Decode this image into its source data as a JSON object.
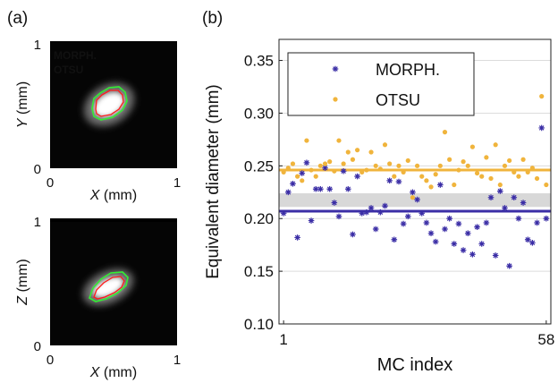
{
  "panel_a": {
    "label": "(a)",
    "top": {
      "xlabel_var": "X",
      "xlabel_unit": " (mm)",
      "ylabel_var": "Y",
      "ylabel_unit": " (mm)",
      "xticks": [
        "0",
        "1"
      ],
      "yticks": [
        "0",
        "1"
      ],
      "legend": [
        {
          "name": "MORPH.",
          "color": "#ff1a1a"
        },
        {
          "name": "OTSU",
          "color": "#33ee33"
        }
      ]
    },
    "bottom": {
      "xlabel_var": "X",
      "xlabel_unit": " (mm)",
      "ylabel_var": "Z",
      "ylabel_unit": " (mm)",
      "xticks": [
        "0",
        "1"
      ],
      "yticks": [
        "0",
        "1"
      ]
    }
  },
  "chart_data": {
    "type": "scatter",
    "panel_label": "(b)",
    "xlabel": "MC index",
    "ylabel": "Equivalent diameter (mm)",
    "xlim": [
      0,
      59
    ],
    "ylim": [
      0.1,
      0.37
    ],
    "xtick_labels": [
      "1",
      "58"
    ],
    "ytick_labels": [
      "0.10",
      "0.15",
      "0.20",
      "0.25",
      "0.30",
      "0.35"
    ],
    "ytick_values": [
      0.1,
      0.15,
      0.2,
      0.25,
      0.3,
      0.35
    ],
    "grid": true,
    "legend_position": "top-left",
    "band": [
      0.211,
      0.224
    ],
    "series": [
      {
        "name": "MORPH.",
        "marker": "asterisk",
        "color": "#3b2ea6",
        "mean": 0.207,
        "x": [
          1,
          2,
          3,
          4,
          5,
          6,
          7,
          8,
          9,
          10,
          11,
          12,
          13,
          14,
          15,
          16,
          17,
          18,
          19,
          20,
          21,
          22,
          23,
          24,
          25,
          26,
          27,
          28,
          29,
          30,
          31,
          32,
          33,
          34,
          35,
          36,
          37,
          38,
          39,
          40,
          41,
          42,
          43,
          44,
          45,
          46,
          47,
          48,
          49,
          50,
          51,
          52,
          53,
          54,
          55,
          56,
          57,
          58
        ],
        "y": [
          0.205,
          0.225,
          0.233,
          0.182,
          0.243,
          0.253,
          0.198,
          0.228,
          0.228,
          0.248,
          0.228,
          0.215,
          0.202,
          0.245,
          0.228,
          0.185,
          0.24,
          0.205,
          0.206,
          0.21,
          0.19,
          0.206,
          0.212,
          0.236,
          0.18,
          0.235,
          0.195,
          0.202,
          0.225,
          0.218,
          0.205,
          0.196,
          0.186,
          0.178,
          0.232,
          0.19,
          0.2,
          0.176,
          0.195,
          0.17,
          0.186,
          0.166,
          0.192,
          0.176,
          0.196,
          0.22,
          0.165,
          0.226,
          0.21,
          0.155,
          0.22,
          0.2,
          0.215,
          0.18,
          0.177,
          0.196,
          0.286,
          0.2
        ]
      },
      {
        "name": "OTSU",
        "marker": "dot",
        "color": "#f0b43c",
        "mean": 0.246,
        "x": [
          1,
          2,
          3,
          4,
          5,
          6,
          7,
          8,
          9,
          10,
          11,
          12,
          13,
          14,
          15,
          16,
          17,
          18,
          19,
          20,
          21,
          22,
          23,
          24,
          25,
          26,
          27,
          28,
          29,
          30,
          31,
          32,
          33,
          34,
          35,
          36,
          37,
          38,
          39,
          40,
          41,
          42,
          43,
          44,
          45,
          46,
          47,
          48,
          49,
          50,
          51,
          52,
          53,
          54,
          55,
          56,
          57,
          58
        ],
        "y": [
          0.244,
          0.248,
          0.252,
          0.24,
          0.236,
          0.274,
          0.246,
          0.24,
          0.25,
          0.252,
          0.254,
          0.245,
          0.274,
          0.252,
          0.263,
          0.256,
          0.265,
          0.244,
          0.246,
          0.263,
          0.25,
          0.247,
          0.27,
          0.252,
          0.24,
          0.25,
          0.244,
          0.255,
          0.22,
          0.25,
          0.24,
          0.236,
          0.23,
          0.242,
          0.25,
          0.282,
          0.256,
          0.232,
          0.246,
          0.254,
          0.25,
          0.268,
          0.243,
          0.24,
          0.258,
          0.238,
          0.27,
          0.232,
          0.25,
          0.255,
          0.244,
          0.24,
          0.256,
          0.244,
          0.248,
          0.238,
          0.316,
          0.232
        ]
      }
    ]
  }
}
